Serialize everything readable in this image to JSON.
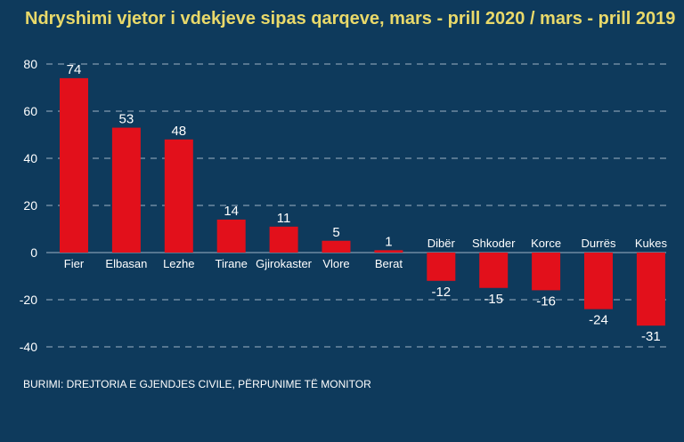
{
  "title": "Ndryshimi vjetor i vdekjeve sipas qarqeve, mars - prill 2020 / mars - prill 2019",
  "source": "BURIMI: DREJTORIA E GJENDJES CIVILE, PËRPUNIME TË MONITOR",
  "colors": {
    "background": "#0e3a5c",
    "bar": "#e2101b",
    "title": "#e9d96a",
    "text": "#ffffff",
    "grid": "#9fb3c4"
  },
  "chart_data": {
    "type": "bar",
    "categories": [
      "Fier",
      "Elbasan",
      "Lezhe",
      "Tirane",
      "Gjirokaster",
      "Vlore",
      "Berat",
      "Dibër",
      "Shkoder",
      "Korce",
      "Durrës",
      "Kukes"
    ],
    "values": [
      74,
      53,
      48,
      14,
      11,
      5,
      1,
      -12,
      -15,
      -16,
      -24,
      -31
    ],
    "data_labels": [
      "74",
      "53",
      "48",
      "14",
      "11",
      "5",
      "1",
      "-12",
      "-15",
      "-16",
      "-24",
      "-31"
    ],
    "title": "Ndryshimi vjetor i vdekjeve sipas qarqeve, mars - prill 2020 / mars - prill 2019",
    "xlabel": "",
    "ylabel": "",
    "ylim": [
      -40,
      80
    ],
    "yticks": [
      80,
      60,
      40,
      20,
      0,
      -20,
      -40
    ],
    "ytick_labels": [
      "80",
      "60",
      "40",
      "20",
      "0",
      "-20",
      "-40"
    ],
    "grid": true,
    "legend": "none"
  }
}
